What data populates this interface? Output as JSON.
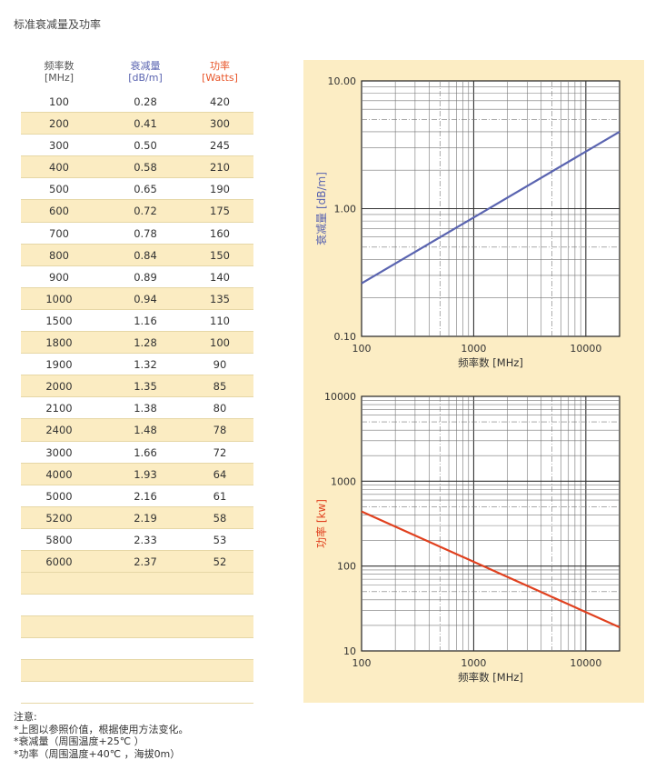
{
  "title": "标准衰减量及功率",
  "table": {
    "headers": [
      {
        "line1": "频率数",
        "line2": "[MHz]"
      },
      {
        "line1": "衰减量",
        "line2": "[dB/m]"
      },
      {
        "line1": "功率",
        "line2": "[Watts]"
      }
    ],
    "rows": [
      [
        "100",
        "0.28",
        "420"
      ],
      [
        "200",
        "0.41",
        "300"
      ],
      [
        "300",
        "0.50",
        "245"
      ],
      [
        "400",
        "0.58",
        "210"
      ],
      [
        "500",
        "0.65",
        "190"
      ],
      [
        "600",
        "0.72",
        "175"
      ],
      [
        "700",
        "0.78",
        "160"
      ],
      [
        "800",
        "0.84",
        "150"
      ],
      [
        "900",
        "0.89",
        "140"
      ],
      [
        "1000",
        "0.94",
        "135"
      ],
      [
        "1500",
        "1.16",
        "110"
      ],
      [
        "1800",
        "1.28",
        "100"
      ],
      [
        "1900",
        "1.32",
        "90"
      ],
      [
        "2000",
        "1.35",
        "85"
      ],
      [
        "2100",
        "1.38",
        "80"
      ],
      [
        "2400",
        "1.48",
        "78"
      ],
      [
        "3000",
        "1.66",
        "72"
      ],
      [
        "4000",
        "1.93",
        "64"
      ],
      [
        "5000",
        "2.16",
        "61"
      ],
      [
        "5200",
        "2.19",
        "58"
      ],
      [
        "5800",
        "2.33",
        "53"
      ],
      [
        "6000",
        "2.37",
        "52"
      ]
    ]
  },
  "chart_data": [
    {
      "type": "line",
      "xlabel": "频率数 [MHz]",
      "ylabel": "衰减量 [dB/m]",
      "xscale": "log",
      "yscale": "log",
      "xlim": [
        100,
        20000
      ],
      "ylim": [
        0.1,
        10
      ],
      "xticks": [
        "100",
        "1000",
        "10000"
      ],
      "yticks": [
        "0.10",
        "1.00",
        "10.00"
      ],
      "color": "#5a64b0",
      "grid": true,
      "series": [
        {
          "x": [
            100,
            20000
          ],
          "y": [
            0.26,
            4.0
          ]
        }
      ]
    },
    {
      "type": "line",
      "xlabel": "频率数 [MHz]",
      "ylabel": "功率 [kw]",
      "xscale": "log",
      "yscale": "log",
      "xlim": [
        100,
        20000
      ],
      "ylim": [
        10,
        10000
      ],
      "xticks": [
        "100",
        "1000",
        "10000"
      ],
      "yticks": [
        "10",
        "100",
        "1000",
        "10000"
      ],
      "color": "#e0401e",
      "grid": true,
      "series": [
        {
          "x": [
            100,
            20000
          ],
          "y": [
            440,
            19
          ]
        }
      ]
    }
  ],
  "notes": {
    "heading": "注意:",
    "lines": [
      "*上图以参照价值，根据使用方法变化。",
      "*衰减量（周围温度+25℃ ）",
      "*功率（周围温度+40℃ ，海拔0m）"
    ]
  }
}
